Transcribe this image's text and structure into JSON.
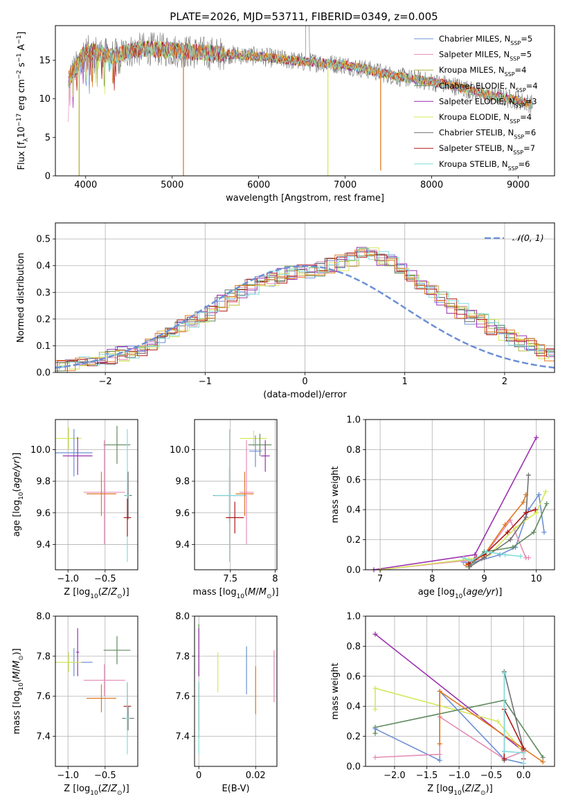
{
  "figure": {
    "title": "PLATE=2026, MJD=53711, FIBERID=0349, z=0.005"
  },
  "colors": {
    "Chabrier_MILES": "#6b8fd6",
    "Salpeter_MILES": "#e58cb5",
    "Kroupa_MILES": "#b3b33a",
    "Chabrier_ELODIE": "#5f8a5f",
    "Salpeter_ELODIE": "#9b30b0",
    "Kroupa_ELODIE": "#d4e85a",
    "Chabrier_STELIB": "#707070",
    "Salpeter_STELIB": "#b01616",
    "Kroupa_STELIB": "#80dcdc",
    "orange": "#e07820",
    "gaussian": "#6b8fd6"
  },
  "chart_data": [
    {
      "type": "line",
      "title": "PLATE=2026, MJD=53711, FIBERID=0349, z=0.005",
      "xlabel": "wavelength [Angstrom, rest frame]",
      "ylabel": "Flux [f_λ 10^-17 erg cm^-2 s^-1 A^-1]",
      "xlim": [
        3650,
        9420
      ],
      "ylim": [
        0,
        19.5
      ],
      "xticks": [
        4000,
        5000,
        6000,
        7000,
        8000,
        9000
      ],
      "yticks": [
        0,
        5,
        10,
        15
      ],
      "grid": false,
      "legend_position": "top-right",
      "legend": [
        {
          "key": "Chabrier_MILES",
          "text": "Chabrier MILES, N",
          "sub": "SSP",
          "tail": "=5"
        },
        {
          "key": "Salpeter_MILES",
          "text": "Salpeter MILES, N",
          "sub": "SSP",
          "tail": "=5"
        },
        {
          "key": "Kroupa_MILES",
          "text": "Kroupa MILES, N",
          "sub": "SSP",
          "tail": "=4"
        },
        {
          "key": "Chabrier_ELODIE",
          "text": "Chabrier ELODIE, N",
          "sub": "SSP",
          "tail": "=4"
        },
        {
          "key": "Salpeter_ELODIE",
          "text": "Salpeter ELODIE, N",
          "sub": "SSP",
          "tail": "=3"
        },
        {
          "key": "Kroupa_ELODIE",
          "text": "Kroupa ELODIE, N",
          "sub": "SSP",
          "tail": "=4"
        },
        {
          "key": "Chabrier_STELIB",
          "text": "Chabrier STELIB, N",
          "sub": "SSP",
          "tail": "=6"
        },
        {
          "key": "Salpeter_STELIB",
          "text": "Salpeter STELIB, N",
          "sub": "SSP",
          "tail": "=7"
        },
        {
          "key": "Kroupa_STELIB",
          "text": "Kroupa STELIB, N",
          "sub": "SSP",
          "tail": "=6"
        }
      ],
      "continuum": {
        "x": [
          3800,
          3850,
          3900,
          3950,
          4000,
          4100,
          4200,
          4300,
          4400,
          4500,
          4700,
          5000,
          5300,
          5600,
          6000,
          6300,
          6500,
          6700,
          7000,
          7300,
          7600,
          8000,
          8300,
          8600,
          9000,
          9170
        ],
        "y": [
          12.5,
          13.5,
          14.2,
          15.5,
          16.0,
          16.2,
          15.8,
          15.5,
          15.8,
          16.2,
          16.5,
          16.3,
          16.0,
          15.8,
          15.5,
          15.1,
          14.8,
          14.7,
          14.4,
          13.7,
          12.9,
          12.2,
          11.6,
          10.6,
          9.8,
          9.3
        ]
      },
      "spikes_down": [
        {
          "x": 3925,
          "y": 0.0
        },
        {
          "x": 5130,
          "y": 0.0
        },
        {
          "x": 6800,
          "y": 0.0
        },
        {
          "x": 7410,
          "y": 0.7
        }
      ],
      "emission_line": {
        "x": 6563,
        "y": 19.5
      }
    },
    {
      "type": "histogram",
      "xlabel": "(data-model)/error",
      "ylabel": "Normed distribution",
      "xlim": [
        -2.5,
        2.5
      ],
      "ylim": [
        0,
        0.56
      ],
      "xticks": [
        -2,
        -1,
        0,
        1,
        2
      ],
      "yticks": [
        0,
        0.1,
        0.2,
        0.3,
        0.4,
        0.5
      ],
      "grid": true,
      "legend_position": "top-right",
      "legend_label": "𝒩(0, 1)",
      "bins": {
        "start": -2.5,
        "width": 0.1,
        "values": [
          0.02,
          0.025,
          0.03,
          0.04,
          0.05,
          0.06,
          0.07,
          0.08,
          0.09,
          0.11,
          0.13,
          0.15,
          0.17,
          0.19,
          0.21,
          0.22,
          0.26,
          0.28,
          0.3,
          0.32,
          0.34,
          0.35,
          0.36,
          0.37,
          0.38,
          0.38,
          0.39,
          0.4,
          0.41,
          0.42,
          0.44,
          0.45,
          0.43,
          0.41,
          0.38,
          0.36,
          0.33,
          0.3,
          0.28,
          0.25,
          0.23,
          0.21,
          0.19,
          0.17,
          0.15,
          0.13,
          0.11,
          0.1,
          0.08,
          0.07,
          0.06,
          0.05,
          0.045,
          0.04,
          0.035,
          0.03,
          0.025,
          0.02
        ]
      }
    },
    {
      "type": "errorbar",
      "xlabel": "Z [log10(Z/Z☉)]",
      "ylabel": "age [log10(age/yr)]",
      "xlim": [
        -1.17,
        -0.06
      ],
      "ylim": [
        9.24,
        10.19
      ],
      "xticks": [
        -1.0,
        -0.5
      ],
      "xtick_labels": [
        "−1.0",
        "−0.5"
      ],
      "yticks": [
        9.4,
        9.6,
        9.8,
        10.0
      ],
      "points": [
        {
          "key": "Kroupa_ELODIE",
          "x": -0.99,
          "y": 10.07,
          "xerr": 0.17,
          "yerr": 0.07
        },
        {
          "key": "Chabrier_MILES",
          "x": -0.92,
          "y": 9.98,
          "xerr": 0.25,
          "yerr": 0.15
        },
        {
          "key": "Salpeter_ELODIE",
          "x": -0.87,
          "y": 9.96,
          "xerr": 0.2,
          "yerr": 0.12
        },
        {
          "key": "Chabrier_ELODIE",
          "x": -0.34,
          "y": 10.03,
          "xerr": 0.18,
          "yerr": 0.12
        },
        {
          "key": "Salpeter_MILES",
          "x": -0.51,
          "y": 9.73,
          "xerr": 0.28,
          "yerr": 0.33
        },
        {
          "key": "orange",
          "x": -0.55,
          "y": 9.72,
          "xerr": 0.2,
          "yerr": 0.14
        },
        {
          "key": "Chabrier_STELIB",
          "x": -0.19,
          "y": 9.71,
          "xerr": 0.05,
          "yerr": 0.15
        },
        {
          "key": "Kroupa_STELIB",
          "x": -0.2,
          "y": 9.71,
          "xerr": 0.03,
          "yerr": 0.42
        },
        {
          "key": "Salpeter_STELIB",
          "x": -0.2,
          "y": 9.57,
          "xerr": 0.05,
          "yerr": 0.12
        }
      ]
    },
    {
      "type": "errorbar",
      "xlabel": "mass [log10(M/M☉)]",
      "ylabel": "",
      "xlim": [
        7.1,
        8.02
      ],
      "ylim": [
        9.24,
        10.19
      ],
      "xticks": [
        7.5,
        8.0
      ],
      "yticks": [
        9.4,
        9.6,
        9.8,
        10.0
      ],
      "points": [
        {
          "key": "Kroupa_ELODIE",
          "x": 7.76,
          "y": 10.07,
          "xerr": 0.15,
          "yerr": 0.05
        },
        {
          "key": "Chabrier_ELODIE",
          "x": 7.83,
          "y": 10.03,
          "xerr": 0.13,
          "yerr": 0.07
        },
        {
          "key": "Chabrier_MILES",
          "x": 7.78,
          "y": 9.99,
          "xerr": 0.07,
          "yerr": 0.1
        },
        {
          "key": "Salpeter_ELODIE",
          "x": 7.89,
          "y": 9.96,
          "xerr": 0.05,
          "yerr": 0.1
        },
        {
          "key": "orange",
          "x": 7.66,
          "y": 9.72,
          "xerr": 0.1,
          "yerr": 0.14
        },
        {
          "key": "Salpeter_MILES",
          "x": 7.68,
          "y": 9.73,
          "xerr": 0.08,
          "yerr": 0.33
        },
        {
          "key": "Chabrier_STELIB",
          "x": 7.49,
          "y": 9.71,
          "xerr": 0.18,
          "yerr": 0.17
        },
        {
          "key": "Kroupa_STELIB",
          "x": 7.49,
          "y": 9.71,
          "xerr": 0.17,
          "yerr": 0.42
        },
        {
          "key": "Salpeter_STELIB",
          "x": 7.55,
          "y": 9.57,
          "xerr": 0.1,
          "yerr": 0.1
        }
      ]
    },
    {
      "type": "line",
      "xlabel": "age [log10(age/yr)]",
      "ylabel": "mass weight",
      "xlim": [
        6.72,
        10.35
      ],
      "ylim": [
        0,
        1.0
      ],
      "xticks": [
        7,
        8,
        9,
        10
      ],
      "yticks": [
        0.0,
        0.2,
        0.4,
        0.6,
        0.8,
        1.0
      ],
      "grid": true,
      "series": [
        {
          "key": "Salpeter_ELODIE",
          "x": [
            6.88,
            8.82,
            10.0
          ],
          "y": [
            0.0,
            0.1,
            0.88
          ]
        },
        {
          "key": "Chabrier_MILES",
          "x": [
            8.6,
            8.8,
            9.3,
            9.6,
            9.85,
            10.05,
            10.15
          ],
          "y": [
            0.05,
            0.05,
            0.1,
            0.15,
            0.4,
            0.5,
            0.25
          ]
        },
        {
          "key": "Salpeter_MILES",
          "x": [
            7.0,
            8.6,
            8.95,
            9.5,
            9.8,
            9.85
          ],
          "y": [
            0.0,
            0.06,
            0.07,
            0.33,
            0.08,
            0.08
          ]
        },
        {
          "key": "Kroupa_ELODIE",
          "x": [
            7.0,
            8.7,
            9.1,
            9.6,
            10.0,
            10.18
          ],
          "y": [
            0.0,
            0.07,
            0.1,
            0.28,
            0.38,
            0.52
          ]
        },
        {
          "key": "orange",
          "x": [
            8.65,
            9.0,
            9.4,
            9.75,
            9.8
          ],
          "y": [
            0.03,
            0.1,
            0.3,
            0.45,
            0.5
          ]
        },
        {
          "key": "Chabrier_ELODIE",
          "x": [
            8.7,
            9.0,
            9.55,
            9.95,
            10.2
          ],
          "y": [
            0.02,
            0.12,
            0.15,
            0.25,
            0.44
          ]
        },
        {
          "key": "Chabrier_STELIB",
          "x": [
            8.72,
            9.0,
            9.5,
            9.8,
            9.85
          ],
          "y": [
            0.02,
            0.08,
            0.2,
            0.35,
            0.63
          ]
        },
        {
          "key": "Salpeter_STELIB",
          "x": [
            8.7,
            8.85,
            9.0,
            9.45,
            9.8,
            9.98
          ],
          "y": [
            0.04,
            0.08,
            0.1,
            0.25,
            0.38,
            0.4
          ]
        },
        {
          "key": "Kroupa_STELIB",
          "x": [
            8.6,
            8.75,
            9.05,
            9.4,
            9.7
          ],
          "y": [
            0.08,
            0.06,
            0.12,
            0.1,
            0.09
          ]
        }
      ]
    },
    {
      "type": "errorbar",
      "xlabel": "Z [log10(Z/Z☉)]",
      "ylabel": "mass [log10(M/M☉)]",
      "xlim": [
        -1.17,
        -0.06
      ],
      "ylim": [
        7.25,
        8.0
      ],
      "xticks": [
        -1.0,
        -0.5
      ],
      "xtick_labels": [
        "−1.0",
        "−0.5"
      ],
      "yticks": [
        7.4,
        7.6,
        7.8,
        8.0
      ],
      "points": [
        {
          "key": "Salpeter_ELODIE",
          "x": -0.87,
          "y": 7.82,
          "xerr": 0.02,
          "yerr": 0.12
        },
        {
          "key": "Chabrier_MILES",
          "x": -0.92,
          "y": 7.77,
          "xerr": 0.25,
          "yerr": 0.07
        },
        {
          "key": "Kroupa_ELODIE",
          "x": -0.99,
          "y": 7.77,
          "xerr": 0.17,
          "yerr": 0.05
        },
        {
          "key": "Chabrier_ELODIE",
          "x": -0.34,
          "y": 7.83,
          "xerr": 0.18,
          "yerr": 0.07
        },
        {
          "key": "Salpeter_MILES",
          "x": -0.51,
          "y": 7.68,
          "xerr": 0.28,
          "yerr": 0.08
        },
        {
          "key": "orange",
          "x": -0.55,
          "y": 7.59,
          "xerr": 0.2,
          "yerr": 0.07
        },
        {
          "key": "Salpeter_STELIB",
          "x": -0.2,
          "y": 7.55,
          "xerr": 0.05,
          "yerr": 0.12
        },
        {
          "key": "Chabrier_STELIB",
          "x": -0.19,
          "y": 7.49,
          "xerr": 0.08,
          "yerr": 0.06
        },
        {
          "key": "Kroupa_STELIB",
          "x": -0.2,
          "y": 7.49,
          "xerr": 0.03,
          "yerr": 0.18
        }
      ]
    },
    {
      "type": "errorbar",
      "xlabel": "E(B-V)",
      "ylabel": "",
      "xlim": [
        -0.0015,
        0.0275
      ],
      "ylim": [
        7.25,
        8.0
      ],
      "xticks": [
        0.0,
        0.02
      ],
      "yticks": [
        7.4,
        7.6,
        7.8,
        8.0
      ],
      "points": [
        {
          "key": "Chabrier_ELODIE",
          "x": 0.0,
          "y": 7.83,
          "xerr": 0,
          "yerr": 0.13
        },
        {
          "key": "Salpeter_ELODIE",
          "x": 0.0,
          "y": 7.82,
          "xerr": 0,
          "yerr": 0.12
        },
        {
          "key": "Salpeter_STELIB",
          "x": 0.0,
          "y": 7.55,
          "xerr": 0,
          "yerr": 0.12
        },
        {
          "key": "Chabrier_STELIB",
          "x": 0.0,
          "y": 7.49,
          "xerr": 0,
          "yerr": 0.1
        },
        {
          "key": "Kroupa_STELIB",
          "x": 0.0,
          "y": 7.49,
          "xerr": 0,
          "yerr": 0.18
        },
        {
          "key": "Kroupa_ELODIE",
          "x": 0.0067,
          "y": 7.72,
          "xerr": 0,
          "yerr": 0.1
        },
        {
          "key": "Chabrier_MILES",
          "x": 0.0168,
          "y": 7.73,
          "xerr": 0,
          "yerr": 0.12
        },
        {
          "key": "orange",
          "x": 0.02,
          "y": 7.63,
          "xerr": 0,
          "yerr": 0.12
        },
        {
          "key": "Salpeter_MILES",
          "x": 0.0265,
          "y": 7.7,
          "xerr": 0,
          "yerr": 0.13
        }
      ]
    },
    {
      "type": "line",
      "xlabel": "Z [log10(Z/Z☉)]",
      "ylabel": "mass weight",
      "xlim": [
        -2.45,
        0.48
      ],
      "ylim": [
        0,
        1.0
      ],
      "xticks": [
        -2.0,
        -1.5,
        -1.0,
        -0.5,
        0.0
      ],
      "xtick_labels": [
        "−2.0",
        "−1.5",
        "−1.0",
        "−0.5",
        "0.0"
      ],
      "yticks": [
        0.0,
        0.2,
        0.4,
        0.6,
        0.8,
        1.0
      ],
      "grid": true,
      "series": [
        {
          "key": "Salpeter_ELODIE",
          "x": [
            -2.3,
            0.0
          ],
          "y": [
            0.88,
            0.1
          ]
        },
        {
          "key": "Kroupa_ELODIE",
          "x": [
            -2.3,
            -2.3,
            -0.4,
            0.0
          ],
          "y": [
            0.38,
            0.52,
            0.3,
            0.09
          ]
        },
        {
          "key": "Chabrier_ELODIE",
          "x": [
            -2.3,
            -2.3,
            -0.3,
            0.3
          ],
          "y": [
            0.22,
            0.26,
            0.44,
            0.06
          ]
        },
        {
          "key": "Chabrier_MILES",
          "x": [
            -2.3,
            -1.3,
            -1.3,
            -0.3,
            0.0
          ],
          "y": [
            0.25,
            0.04,
            0.5,
            0.05,
            0.02
          ]
        },
        {
          "key": "Salpeter_MILES",
          "x": [
            -2.3,
            -1.3,
            -1.3,
            -0.3,
            0.0
          ],
          "y": [
            0.06,
            0.08,
            0.33,
            0.05,
            0.1
          ]
        },
        {
          "key": "orange",
          "x": [
            -1.3,
            -1.3,
            0.3
          ],
          "y": [
            0.15,
            0.5,
            0.03
          ]
        },
        {
          "key": "Chabrier_STELIB",
          "x": [
            -0.3,
            -0.3,
            0.0
          ],
          "y": [
            0.04,
            0.63,
            0.11
          ]
        },
        {
          "key": "Salpeter_STELIB",
          "x": [
            -0.3,
            -0.3,
            0.0,
            0.0
          ],
          "y": [
            0.05,
            0.38,
            0.12,
            0.05
          ]
        },
        {
          "key": "Kroupa_STELIB",
          "x": [
            -0.3,
            -0.3,
            0.0,
            0.0
          ],
          "y": [
            0.62,
            0.1,
            0.09,
            0.02
          ]
        }
      ]
    }
  ]
}
